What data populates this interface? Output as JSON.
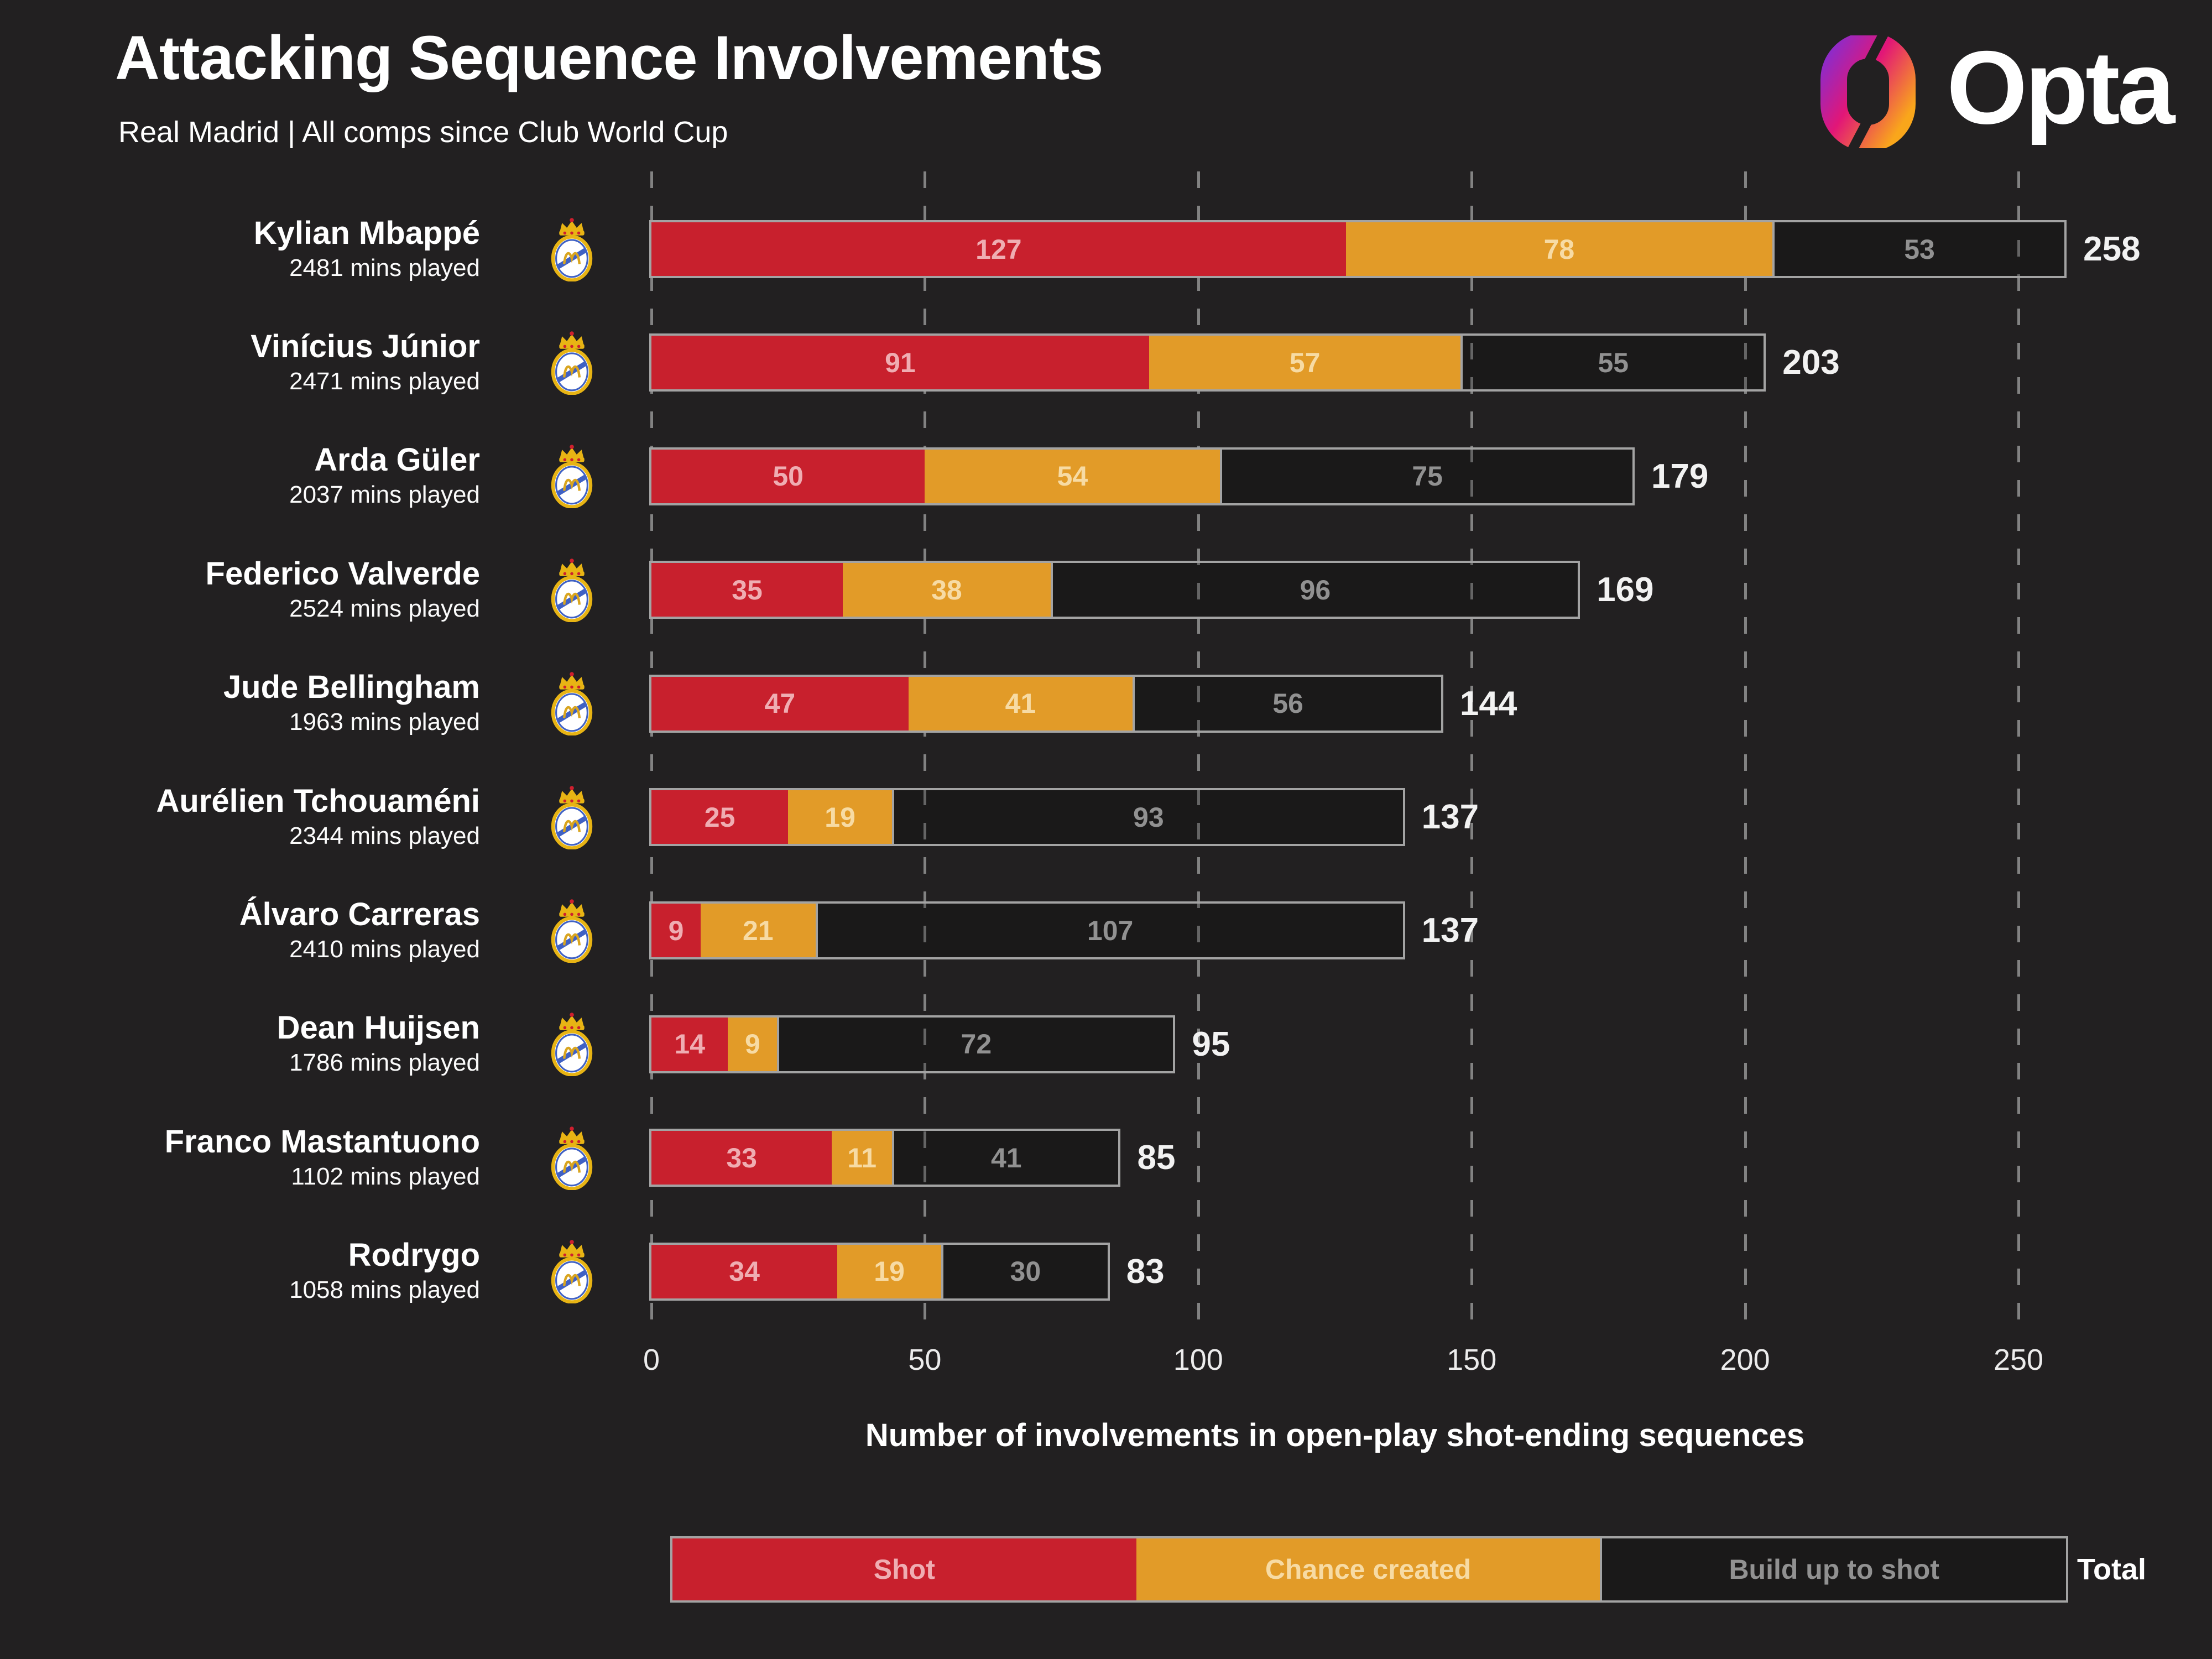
{
  "title": "Attacking Sequence Involvements",
  "subtitle": "Real Madrid | All comps since Club World Cup",
  "brand": {
    "name": "Opta"
  },
  "colors": {
    "background": "#222021",
    "shot": "#c8202d",
    "chance_created": "#e29b28",
    "build_up_outline": "#a3a3a3",
    "gridline": "#828282",
    "opta_gradient": [
      "#8d2bc9",
      "#e21677",
      "#f9a61b"
    ]
  },
  "chart_data": {
    "type": "bar",
    "stacked": true,
    "orientation": "horizontal",
    "xlabel": "Number of involvements in open-play shot-ending sequences",
    "x_ticks": [
      0,
      50,
      100,
      150,
      200,
      250
    ],
    "xlim": [
      0,
      250
    ],
    "grid": "dashed-vertical",
    "legend_position": "bottom",
    "series_names": [
      "Shot",
      "Chance created",
      "Build up to shot"
    ],
    "players": [
      {
        "name": "Kylian Mbappé",
        "minutes": "2481 mins played",
        "shot": 127,
        "chance_created": 78,
        "build_up": 53,
        "total": 258
      },
      {
        "name": "Vinícius Júnior",
        "minutes": "2471 mins played",
        "shot": 91,
        "chance_created": 57,
        "build_up": 55,
        "total": 203
      },
      {
        "name": "Arda Güler",
        "minutes": "2037 mins played",
        "shot": 50,
        "chance_created": 54,
        "build_up": 75,
        "total": 179
      },
      {
        "name": "Federico Valverde",
        "minutes": "2524 mins played",
        "shot": 35,
        "chance_created": 38,
        "build_up": 96,
        "total": 169
      },
      {
        "name": "Jude Bellingham",
        "minutes": "1963 mins played",
        "shot": 47,
        "chance_created": 41,
        "build_up": 56,
        "total": 144
      },
      {
        "name": "Aurélien Tchouaméni",
        "minutes": "2344 mins played",
        "shot": 25,
        "chance_created": 19,
        "build_up": 93,
        "total": 137
      },
      {
        "name": "Álvaro Carreras",
        "minutes": "2410 mins played",
        "shot": 9,
        "chance_created": 21,
        "build_up": 107,
        "total": 137
      },
      {
        "name": "Dean Huijsen",
        "minutes": "1786 mins played",
        "shot": 14,
        "chance_created": 9,
        "build_up": 72,
        "total": 95
      },
      {
        "name": "Franco Mastantuono",
        "minutes": "1102 mins played",
        "shot": 33,
        "chance_created": 11,
        "build_up": 41,
        "total": 85
      },
      {
        "name": "Rodrygo",
        "minutes": "1058 mins played",
        "shot": 34,
        "chance_created": 19,
        "build_up": 30,
        "total": 83
      }
    ]
  },
  "legend": {
    "items": [
      "Shot",
      "Chance created",
      "Build up to shot"
    ],
    "total_label": "Total"
  }
}
